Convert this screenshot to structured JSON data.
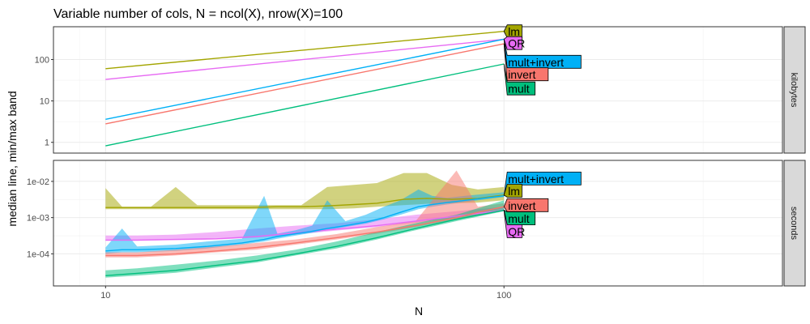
{
  "chart_data": {
    "type": "line",
    "title": "Variable number of cols, N = ncol(X), nrow(X)=100",
    "xlabel": "N",
    "ylabel": "median line, min/max band",
    "x_scale": "log10",
    "xlim": [
      7.4,
      500
    ],
    "x_ticks": [
      10,
      100
    ],
    "x_tick_labels": [
      "10",
      "100"
    ],
    "grid": true,
    "colors": {
      "lm": "#a3a500",
      "QR": "#e76bf3",
      "mult+invert": "#00b0f6",
      "invert": "#f8766d",
      "mult": "#00bf7d"
    },
    "panels": [
      {
        "strip": "kilobytes",
        "y_scale": "log10",
        "ylim": [
          0.55,
          620
        ],
        "y_ticks": [
          1,
          10,
          100
        ],
        "y_tick_labels": [
          "1",
          "10",
          "100"
        ],
        "series": [
          {
            "name": "lm",
            "x": [
              10,
              100
            ],
            "median": [
              60,
              480
            ]
          },
          {
            "name": "QR",
            "x": [
              10,
              100
            ],
            "median": [
              33,
              310
            ]
          },
          {
            "name": "mult+invert",
            "x": [
              10,
              100
            ],
            "median": [
              3.6,
              310
            ]
          },
          {
            "name": "invert",
            "x": [
              10,
              100
            ],
            "median": [
              2.8,
              240
            ]
          },
          {
            "name": "mult",
            "x": [
              10,
              100
            ],
            "median": [
              0.82,
              78
            ]
          }
        ],
        "labels": [
          {
            "text": "lm",
            "series": "lm",
            "at": 480
          },
          {
            "text": "QR",
            "series": "QR",
            "at": 250
          },
          {
            "text": "mult+invert",
            "series": "mult+invert",
            "at": 88
          },
          {
            "text": "invert",
            "series": "invert",
            "at": 44
          },
          {
            "text": "mult",
            "series": "mult",
            "at": 20
          }
        ]
      },
      {
        "strip": "seconds",
        "y_scale": "log10",
        "ylim": [
          1.3e-05,
          0.038
        ],
        "y_ticks": [
          0.0001,
          0.001,
          0.01
        ],
        "y_tick_labels": [
          "1e-04",
          "1e-03",
          "1e-02"
        ],
        "series": [
          {
            "name": "lm",
            "x": [
              10,
              11,
              13,
              15,
              17,
              20,
              23,
              27,
              31,
              36,
              42,
              48,
              56,
              64,
              74,
              86,
              100
            ],
            "median": [
              0.0019,
              0.0019,
              0.0019,
              0.0019,
              0.0019,
              0.0019,
              0.0019,
              0.002,
              0.002,
              0.0021,
              0.0023,
              0.0025,
              0.0032,
              0.0034,
              0.0032,
              0.0034,
              0.0042
            ],
            "min": [
              0.0017,
              0.0017,
              0.0017,
              0.0017,
              0.0017,
              0.0017,
              0.0017,
              0.0017,
              0.0017,
              0.0017,
              0.0018,
              0.002,
              0.0022,
              0.0024,
              0.0025,
              0.0026,
              0.003
            ],
            "max": [
              0.0065,
              0.002,
              0.002,
              0.007,
              0.0022,
              0.0022,
              0.0022,
              0.0022,
              0.0022,
              0.007,
              0.008,
              0.009,
              0.017,
              0.017,
              0.008,
              0.006,
              0.007
            ]
          },
          {
            "name": "QR",
            "x": [
              10,
              12,
              15,
              19,
              24,
              30,
              38,
              48,
              60,
              76,
              100
            ],
            "median": [
              0.00024,
              0.00024,
              0.00025,
              0.00026,
              0.0003,
              0.00038,
              0.00048,
              0.0006,
              0.0008,
              0.0011,
              0.0016
            ],
            "min": [
              0.00023,
              0.00023,
              0.00024,
              0.00025,
              0.00028,
              0.00034,
              0.00044,
              0.00055,
              0.00072,
              0.001,
              0.0015
            ],
            "max": [
              0.00032,
              0.00032,
              0.00034,
              0.0004,
              0.0005,
              0.0006,
              0.0007,
              0.0009,
              0.0012,
              0.0015,
              0.002
            ]
          },
          {
            "name": "mult+invert",
            "x": [
              10,
              11,
              12,
              15,
              18,
              22,
              25,
              27,
              30,
              33,
              36,
              40,
              45,
              50,
              55,
              61,
              66,
              72,
              80,
              90,
              100
            ],
            "median": [
              0.00012,
              0.00013,
              0.00013,
              0.00014,
              0.00016,
              0.0002,
              0.00025,
              0.0003,
              0.00036,
              0.00042,
              0.0005,
              0.0006,
              0.00075,
              0.001,
              0.0014,
              0.002,
              0.0023,
              0.0026,
              0.003,
              0.0035,
              0.004
            ],
            "min": [
              0.0001,
              0.00011,
              0.00011,
              0.00012,
              0.00014,
              0.00018,
              0.00022,
              0.00026,
              0.00032,
              0.00038,
              0.00045,
              0.00055,
              0.00068,
              0.0009,
              0.0012,
              0.0017,
              0.002,
              0.0023,
              0.0027,
              0.0032,
              0.0037
            ],
            "max": [
              0.00015,
              0.0005,
              0.00016,
              0.00018,
              0.00022,
              0.00026,
              0.004,
              0.00036,
              0.00045,
              0.0006,
              0.003,
              0.0008,
              0.0012,
              0.002,
              0.003,
              0.006,
              0.004,
              0.0035,
              0.004,
              0.0045,
              0.005
            ]
          },
          {
            "name": "invert",
            "x": [
              10,
              12,
              15,
              19,
              24,
              30,
              38,
              48,
              60,
              76,
              86,
              100
            ],
            "median": [
              9e-05,
              9e-05,
              0.0001,
              0.00012,
              0.00015,
              0.0002,
              0.00028,
              0.0004,
              0.0006,
              0.001,
              0.0014,
              0.002
            ],
            "min": [
              8e-05,
              8e-05,
              9e-05,
              0.00011,
              0.00013,
              0.00018,
              0.00025,
              0.00036,
              0.00055,
              0.0009,
              0.0012,
              0.0018
            ],
            "max": [
              0.00011,
              0.00011,
              0.00013,
              0.00016,
              0.0002,
              0.00025,
              0.00035,
              0.00055,
              0.0008,
              0.02,
              0.002,
              0.0025
            ]
          },
          {
            "name": "mult",
            "x": [
              10,
              12,
              15,
              19,
              24,
              30,
              38,
              48,
              60,
              76,
              100
            ],
            "median": [
              2.5e-05,
              2.9e-05,
              3.5e-05,
              4.8e-05,
              6.5e-05,
              0.0001,
              0.00016,
              0.00028,
              0.0005,
              0.0009,
              0.0016
            ],
            "min": [
              2.2e-05,
              2.5e-05,
              3e-05,
              4.2e-05,
              5.8e-05,
              9e-05,
              0.00014,
              0.00025,
              0.00045,
              0.0008,
              0.0015
            ],
            "max": [
              3.5e-05,
              4e-05,
              5e-05,
              6.5e-05,
              9e-05,
              0.00013,
              0.00022,
              0.0004,
              0.0007,
              0.0012,
              0.003
            ]
          }
        ],
        "labels": [
          {
            "text": "mult+invert",
            "series": "mult+invert",
            "at": 0.012
          },
          {
            "text": "lm",
            "series": "lm",
            "at": 0.0055
          },
          {
            "text": "invert",
            "series": "invert",
            "at": 0.0022
          },
          {
            "text": "mult",
            "series": "mult",
            "at": 0.00095
          },
          {
            "text": "QR",
            "series": "QR",
            "at": 0.00042
          }
        ]
      }
    ]
  }
}
